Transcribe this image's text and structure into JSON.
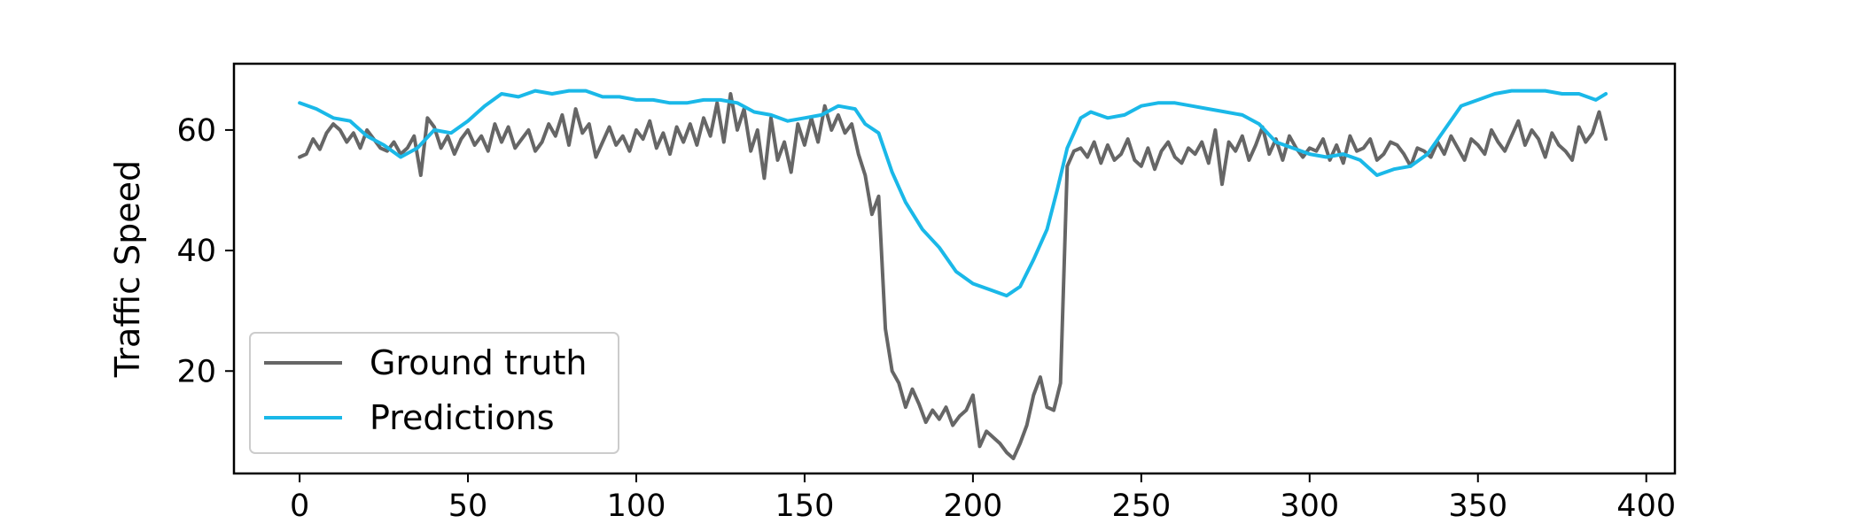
{
  "chart_data": {
    "type": "line",
    "title": "",
    "xlabel": "",
    "ylabel": "Traffic Speed",
    "xlim": [
      -19.5,
      408.5
    ],
    "ylim": [
      3,
      71
    ],
    "xticks": [
      0,
      50,
      100,
      150,
      200,
      250,
      300,
      350,
      400
    ],
    "xtick_labels": [
      "0",
      "50",
      "100",
      "150",
      "200",
      "250",
      "300",
      "350",
      "400"
    ],
    "yticks": [
      20,
      40,
      60
    ],
    "ytick_labels": [
      "20",
      "40",
      "60"
    ],
    "grid": false,
    "legend_position": "lower-left",
    "series": [
      {
        "name": "Ground truth",
        "color": "#666666",
        "x": [
          0,
          2,
          4,
          6,
          8,
          10,
          12,
          14,
          16,
          18,
          20,
          22,
          24,
          26,
          28,
          30,
          32,
          34,
          36,
          38,
          40,
          42,
          44,
          46,
          48,
          50,
          52,
          54,
          56,
          58,
          60,
          62,
          64,
          66,
          68,
          70,
          72,
          74,
          76,
          78,
          80,
          82,
          84,
          86,
          88,
          90,
          92,
          94,
          96,
          98,
          100,
          102,
          104,
          106,
          108,
          110,
          112,
          114,
          116,
          118,
          120,
          122,
          124,
          126,
          128,
          130,
          132,
          134,
          136,
          138,
          140,
          142,
          144,
          146,
          148,
          150,
          152,
          154,
          156,
          158,
          160,
          162,
          164,
          166,
          168,
          170,
          172,
          174,
          176,
          178,
          180,
          182,
          184,
          186,
          188,
          190,
          192,
          194,
          196,
          198,
          200,
          202,
          204,
          206,
          208,
          210,
          212,
          214,
          216,
          218,
          220,
          222,
          224,
          226,
          228,
          230,
          232,
          234,
          236,
          238,
          240,
          242,
          244,
          246,
          248,
          250,
          252,
          254,
          256,
          258,
          260,
          262,
          264,
          266,
          268,
          270,
          272,
          274,
          276,
          278,
          280,
          282,
          284,
          286,
          288,
          290,
          292,
          294,
          296,
          298,
          300,
          302,
          304,
          306,
          308,
          310,
          312,
          314,
          316,
          318,
          320,
          322,
          324,
          326,
          328,
          330,
          332,
          334,
          336,
          338,
          340,
          342,
          344,
          346,
          348,
          350,
          352,
          354,
          356,
          358,
          360,
          362,
          364,
          366,
          368,
          370,
          372,
          374,
          376,
          378,
          380,
          382,
          384,
          386,
          388
        ],
        "y": [
          55.5,
          56,
          58.5,
          56.8,
          59.5,
          61,
          60,
          58,
          59.5,
          57,
          60,
          58.5,
          57,
          56.5,
          58,
          56,
          57,
          59,
          52.5,
          62,
          60.5,
          57,
          59,
          56,
          58.5,
          60,
          57.5,
          59,
          56.5,
          61,
          58,
          60.5,
          57,
          58.5,
          60,
          56.5,
          58,
          61,
          59,
          62.5,
          57.5,
          63.5,
          59.5,
          61,
          55.5,
          58,
          60.5,
          57.5,
          59,
          56.5,
          60,
          58.5,
          61.5,
          57,
          59.5,
          56,
          60.5,
          58,
          61,
          57.5,
          62,
          59,
          64.5,
          58,
          66,
          60,
          63.5,
          56.5,
          60,
          52,
          62,
          55,
          58,
          53,
          61,
          57.5,
          62,
          58,
          64,
          60,
          62.5,
          59.5,
          61,
          56,
          52.5,
          46,
          49,
          27,
          20,
          18,
          14,
          17,
          14.5,
          11.5,
          13.5,
          12,
          14,
          11,
          12.5,
          13.5,
          16,
          7.5,
          10,
          9,
          8,
          6.5,
          5.5,
          8,
          11,
          16,
          19,
          14,
          13.5,
          18,
          54,
          56.5,
          57,
          55.5,
          58,
          54.5,
          57.5,
          55,
          56,
          58.5,
          55,
          54,
          57,
          53.5,
          56.5,
          58,
          55.5,
          54.5,
          57,
          56,
          58,
          54.5,
          60,
          51,
          58,
          56.5,
          59,
          55,
          57.5,
          60.5,
          56,
          58.5,
          55,
          59,
          57,
          55.5,
          57,
          56.5,
          58.5,
          55,
          57.5,
          54.5,
          59,
          56.5,
          57,
          58.5,
          55,
          56,
          58,
          57.5,
          56,
          54,
          57,
          56.5,
          55.5,
          58,
          56,
          59,
          57,
          55,
          58.5,
          57.5,
          56,
          60,
          58,
          56.5,
          59,
          61.5,
          57.5,
          60,
          58.5,
          55.5,
          59.5,
          57.5,
          56.5,
          55,
          60.5,
          58,
          59.5,
          63,
          58.5
        ]
      },
      {
        "name": "Predictions",
        "color": "#1ab8e8",
        "x": [
          0,
          5,
          10,
          15,
          20,
          25,
          30,
          35,
          40,
          45,
          50,
          55,
          60,
          65,
          70,
          75,
          80,
          85,
          90,
          95,
          100,
          105,
          110,
          115,
          120,
          125,
          130,
          135,
          140,
          145,
          150,
          155,
          160,
          165,
          168,
          172,
          176,
          180,
          185,
          190,
          195,
          200,
          205,
          210,
          214,
          218,
          222,
          225,
          228,
          232,
          235,
          240,
          245,
          250,
          255,
          260,
          265,
          270,
          275,
          280,
          285,
          290,
          295,
          300,
          305,
          310,
          315,
          320,
          325,
          330,
          335,
          340,
          345,
          350,
          355,
          360,
          365,
          370,
          375,
          380,
          385,
          388
        ],
        "y": [
          64.5,
          63.5,
          62,
          61.5,
          59,
          57.5,
          55.5,
          57,
          60,
          59.5,
          61.5,
          64,
          66,
          65.5,
          66.5,
          66,
          66.5,
          66.5,
          65.5,
          65.5,
          65,
          65,
          64.5,
          64.5,
          65,
          65,
          64.5,
          63,
          62.5,
          61.5,
          62,
          62.5,
          64,
          63.5,
          61,
          59.5,
          53,
          48,
          43.5,
          40.5,
          36.5,
          34.5,
          33.5,
          32.5,
          34,
          38.5,
          43.5,
          50,
          57,
          62,
          63,
          62,
          62.5,
          64,
          64.5,
          64.5,
          64,
          63.5,
          63,
          62.5,
          61,
          58,
          57,
          56,
          55.5,
          56,
          55,
          52.5,
          53.5,
          54,
          56,
          60,
          64,
          65,
          66,
          66.5,
          66.5,
          66.5,
          66,
          66,
          65,
          66
        ]
      }
    ]
  }
}
